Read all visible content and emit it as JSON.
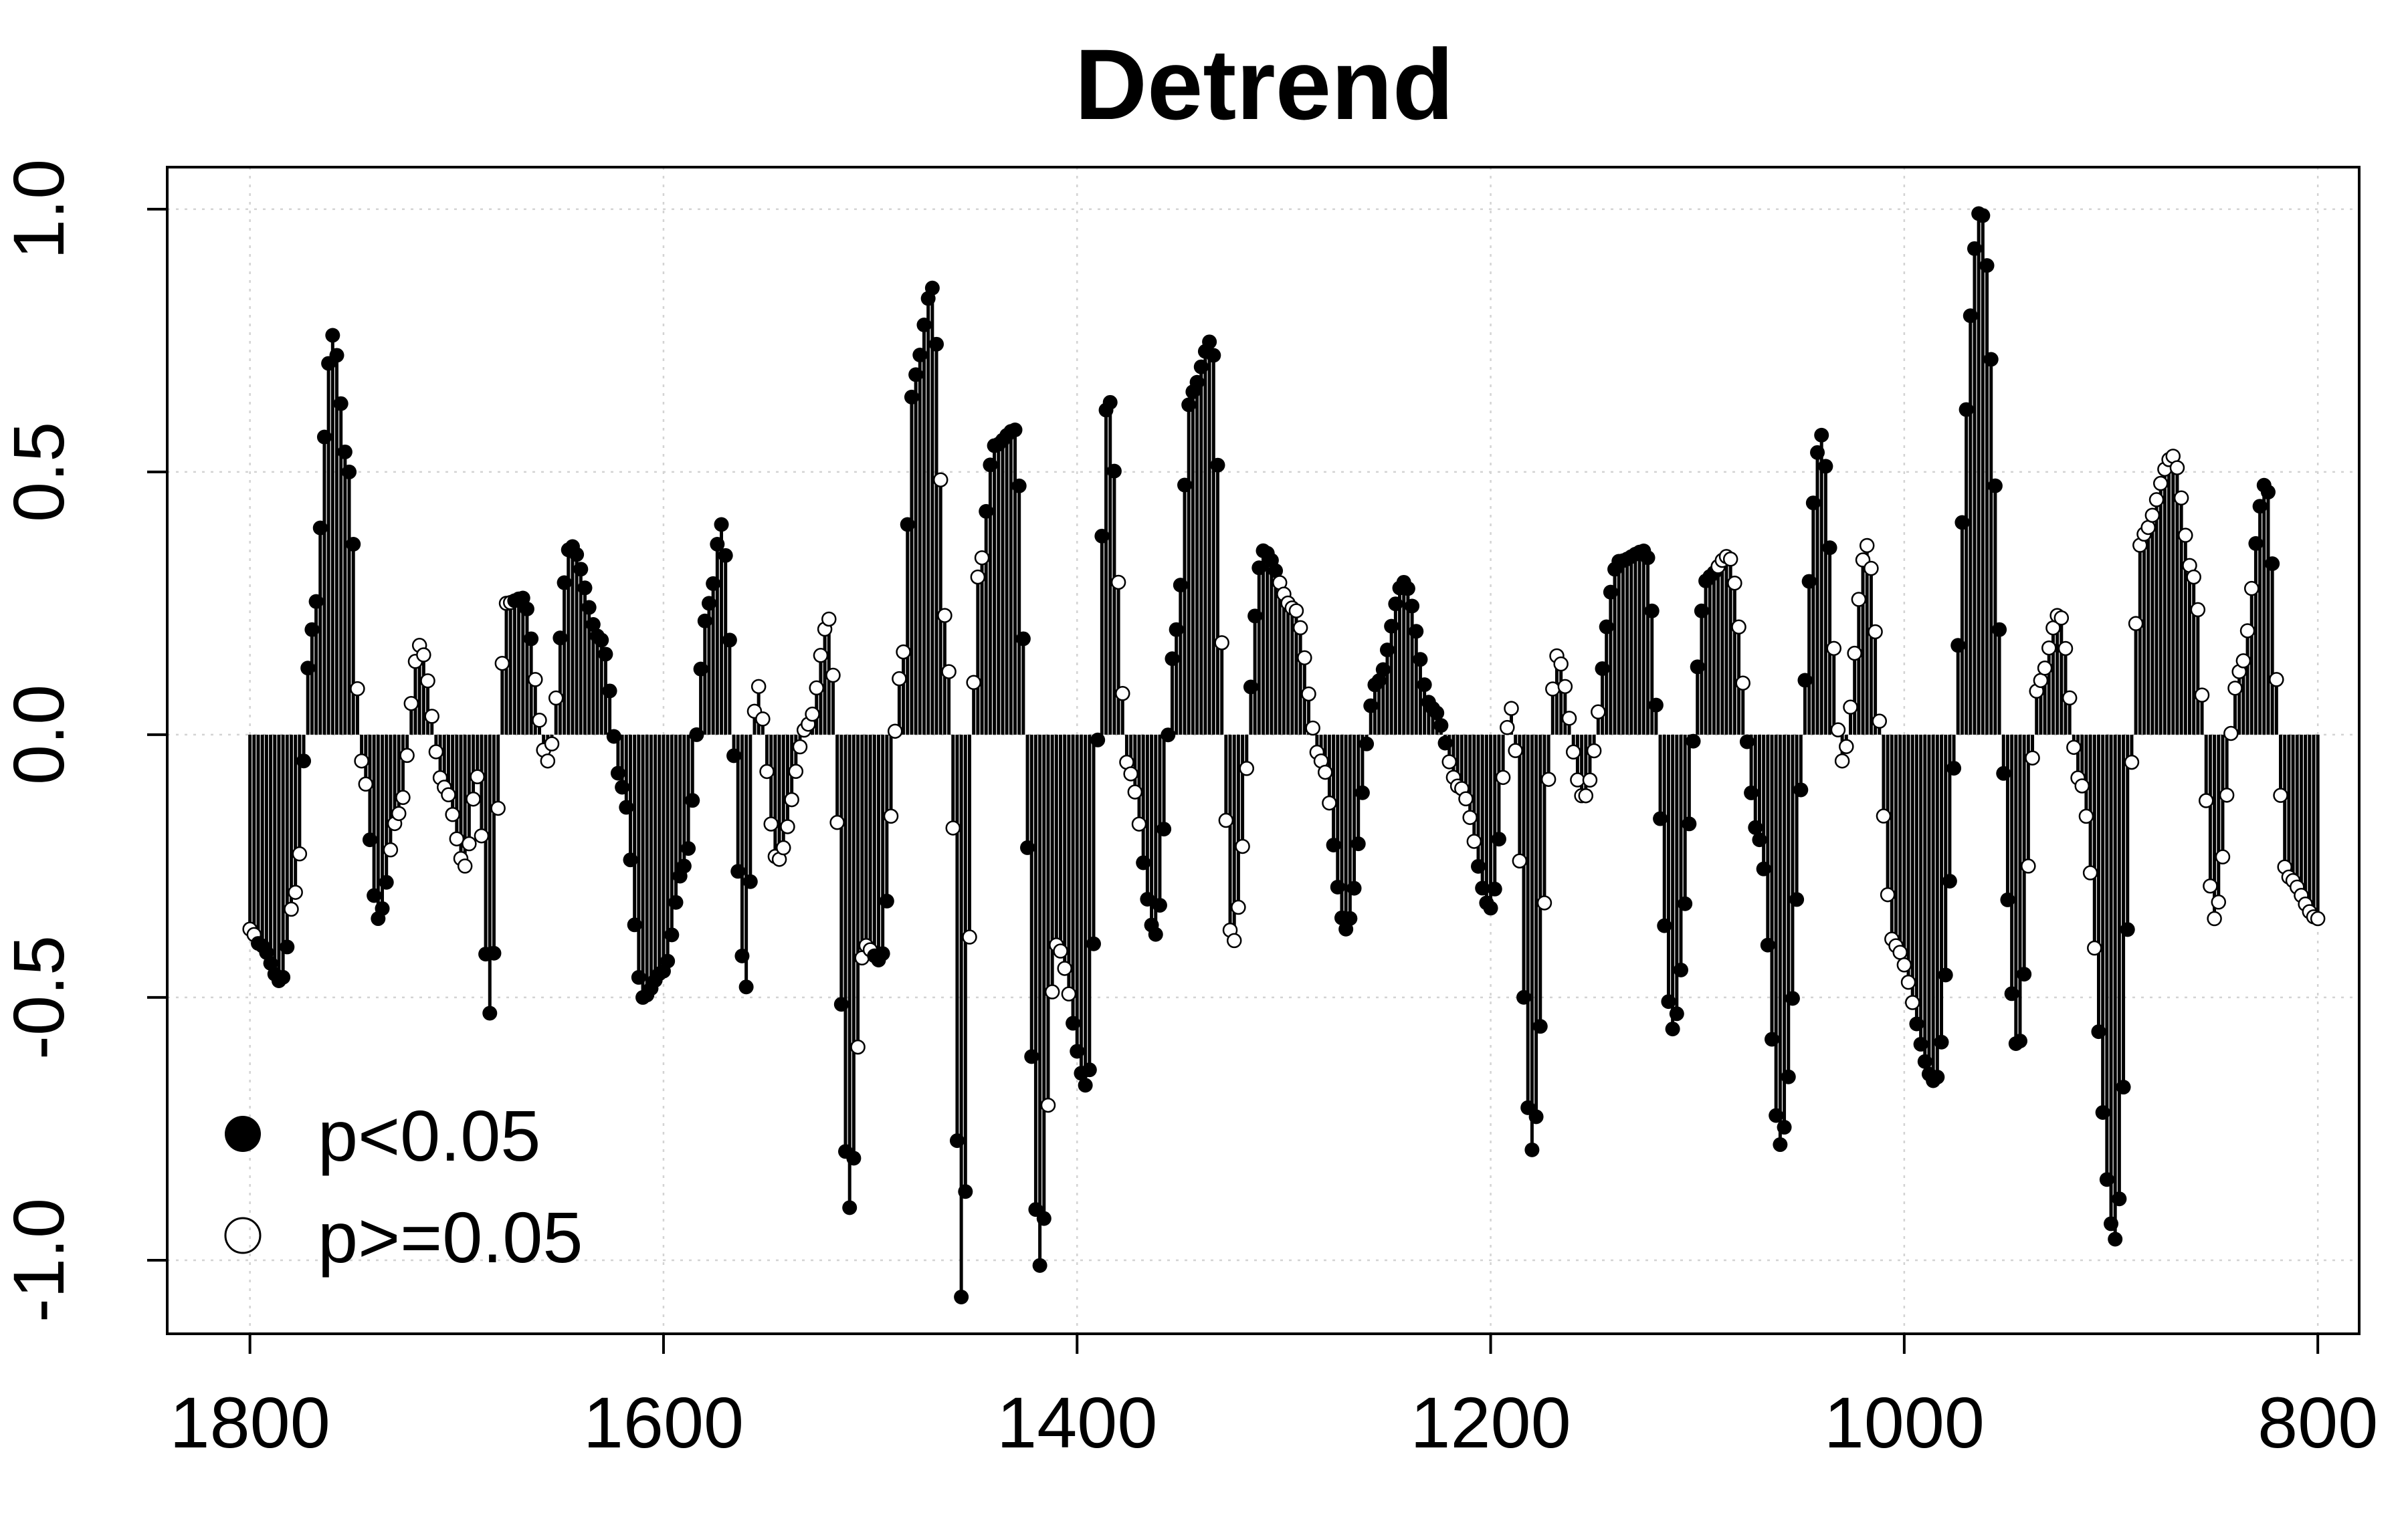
{
  "chart_data": {
    "type": "scatter",
    "title": "Detrend",
    "xlabel": "",
    "ylabel": "",
    "xlim": [
      1840,
      780
    ],
    "ylim": [
      -1.14,
      1.08
    ],
    "x_ticks": [
      1800,
      1600,
      1400,
      1200,
      1000,
      800
    ],
    "y_ticks": [
      -1.0,
      -0.5,
      0.0,
      0.5,
      1.0
    ],
    "x_tick_labels": [
      "1800",
      "1600",
      "1400",
      "1200",
      "1000",
      "800"
    ],
    "y_tick_labels": [
      "-1.0",
      "-0.5",
      "0.0",
      "0.5",
      "1.0"
    ],
    "grid": true,
    "legend_placement": "bottom-left",
    "legend": [
      {
        "label": "p<0.05",
        "marker": "filled-circle"
      },
      {
        "label": "p>=0.05",
        "marker": "open-circle"
      }
    ],
    "stem_baseline": 0.0,
    "stem_step_years": 2,
    "series_envelope": [
      {
        "x": 1800,
        "y": -0.37,
        "sig": false
      },
      {
        "x": 1795,
        "y": -0.4,
        "sig": true
      },
      {
        "x": 1785,
        "y": -0.47,
        "sig": true
      },
      {
        "x": 1778,
        "y": -0.3,
        "sig": false
      },
      {
        "x": 1770,
        "y": 0.2,
        "sig": true
      },
      {
        "x": 1760,
        "y": 0.76,
        "sig": true
      },
      {
        "x": 1752,
        "y": 0.5,
        "sig": true
      },
      {
        "x": 1746,
        "y": -0.05,
        "sig": false
      },
      {
        "x": 1738,
        "y": -0.35,
        "sig": true
      },
      {
        "x": 1728,
        "y": -0.15,
        "sig": false
      },
      {
        "x": 1718,
        "y": 0.17,
        "sig": false
      },
      {
        "x": 1706,
        "y": -0.1,
        "sig": false
      },
      {
        "x": 1696,
        "y": -0.25,
        "sig": false
      },
      {
        "x": 1690,
        "y": -0.08,
        "sig": false
      },
      {
        "x": 1684,
        "y": -0.53,
        "sig": true
      },
      {
        "x": 1676,
        "y": 0.25,
        "sig": false
      },
      {
        "x": 1668,
        "y": 0.26,
        "sig": true
      },
      {
        "x": 1656,
        "y": -0.05,
        "sig": false
      },
      {
        "x": 1645,
        "y": 0.36,
        "sig": true
      },
      {
        "x": 1630,
        "y": 0.18,
        "sig": true
      },
      {
        "x": 1620,
        "y": -0.1,
        "sig": true
      },
      {
        "x": 1610,
        "y": -0.5,
        "sig": true
      },
      {
        "x": 1600,
        "y": -0.45,
        "sig": true
      },
      {
        "x": 1590,
        "y": -0.25,
        "sig": true
      },
      {
        "x": 1578,
        "y": 0.25,
        "sig": true
      },
      {
        "x": 1572,
        "y": 0.4,
        "sig": true
      },
      {
        "x": 1560,
        "y": -0.48,
        "sig": true
      },
      {
        "x": 1555,
        "y": 0.1,
        "sig": false
      },
      {
        "x": 1545,
        "y": -0.24,
        "sig": false
      },
      {
        "x": 1530,
        "y": 0.02,
        "sig": false
      },
      {
        "x": 1520,
        "y": 0.22,
        "sig": false
      },
      {
        "x": 1510,
        "y": -0.9,
        "sig": true
      },
      {
        "x": 1503,
        "y": -0.4,
        "sig": false
      },
      {
        "x": 1495,
        "y": -0.43,
        "sig": true
      },
      {
        "x": 1485,
        "y": 0.12,
        "sig": false
      },
      {
        "x": 1479,
        "y": 0.68,
        "sig": true
      },
      {
        "x": 1470,
        "y": 0.85,
        "sig": true
      },
      {
        "x": 1462,
        "y": 0.12,
        "sig": false
      },
      {
        "x": 1456,
        "y": -1.07,
        "sig": true
      },
      {
        "x": 1448,
        "y": 0.3,
        "sig": false
      },
      {
        "x": 1440,
        "y": 0.55,
        "sig": true
      },
      {
        "x": 1430,
        "y": 0.58,
        "sig": true
      },
      {
        "x": 1418,
        "y": -1.01,
        "sig": true
      },
      {
        "x": 1410,
        "y": -0.4,
        "sig": false
      },
      {
        "x": 1395,
        "y": -0.67,
        "sig": true
      },
      {
        "x": 1385,
        "y": 0.65,
        "sig": true
      },
      {
        "x": 1375,
        "y": -0.07,
        "sig": false
      },
      {
        "x": 1362,
        "y": -0.38,
        "sig": true
      },
      {
        "x": 1352,
        "y": 0.2,
        "sig": true
      },
      {
        "x": 1345,
        "y": 0.65,
        "sig": true
      },
      {
        "x": 1335,
        "y": 0.75,
        "sig": true
      },
      {
        "x": 1325,
        "y": -0.4,
        "sig": false
      },
      {
        "x": 1310,
        "y": 0.35,
        "sig": true
      },
      {
        "x": 1295,
        "y": 0.24,
        "sig": false
      },
      {
        "x": 1282,
        "y": -0.05,
        "sig": false
      },
      {
        "x": 1270,
        "y": -0.37,
        "sig": true
      },
      {
        "x": 1255,
        "y": 0.1,
        "sig": true
      },
      {
        "x": 1242,
        "y": 0.29,
        "sig": true
      },
      {
        "x": 1228,
        "y": 0.05,
        "sig": true
      },
      {
        "x": 1215,
        "y": -0.1,
        "sig": false
      },
      {
        "x": 1200,
        "y": -0.33,
        "sig": true
      },
      {
        "x": 1190,
        "y": 0.05,
        "sig": false
      },
      {
        "x": 1180,
        "y": -0.79,
        "sig": true
      },
      {
        "x": 1168,
        "y": 0.15,
        "sig": false
      },
      {
        "x": 1155,
        "y": -0.12,
        "sig": false
      },
      {
        "x": 1138,
        "y": 0.33,
        "sig": true
      },
      {
        "x": 1125,
        "y": 0.35,
        "sig": true
      },
      {
        "x": 1112,
        "y": -0.56,
        "sig": true
      },
      {
        "x": 1095,
        "y": 0.3,
        "sig": true
      },
      {
        "x": 1085,
        "y": 0.34,
        "sig": false
      },
      {
        "x": 1070,
        "y": -0.2,
        "sig": true
      },
      {
        "x": 1060,
        "y": -0.78,
        "sig": true
      },
      {
        "x": 1040,
        "y": 0.57,
        "sig": true
      },
      {
        "x": 1030,
        "y": -0.05,
        "sig": false
      },
      {
        "x": 1018,
        "y": 0.36,
        "sig": false
      },
      {
        "x": 1005,
        "y": -0.4,
        "sig": false
      },
      {
        "x": 985,
        "y": -0.66,
        "sig": true
      },
      {
        "x": 963,
        "y": 1.0,
        "sig": true
      },
      {
        "x": 945,
        "y": -0.6,
        "sig": true
      },
      {
        "x": 935,
        "y": 0.1,
        "sig": false
      },
      {
        "x": 925,
        "y": 0.23,
        "sig": false
      },
      {
        "x": 915,
        "y": -0.09,
        "sig": false
      },
      {
        "x": 898,
        "y": -0.96,
        "sig": true
      },
      {
        "x": 885,
        "y": 0.38,
        "sig": false
      },
      {
        "x": 870,
        "y": 0.53,
        "sig": false
      },
      {
        "x": 860,
        "y": 0.3,
        "sig": false
      },
      {
        "x": 850,
        "y": -0.35,
        "sig": false
      },
      {
        "x": 838,
        "y": 0.12,
        "sig": false
      },
      {
        "x": 825,
        "y": 0.48,
        "sig": true
      },
      {
        "x": 815,
        "y": -0.27,
        "sig": false
      },
      {
        "x": 800,
        "y": -0.35,
        "sig": false
      }
    ]
  }
}
